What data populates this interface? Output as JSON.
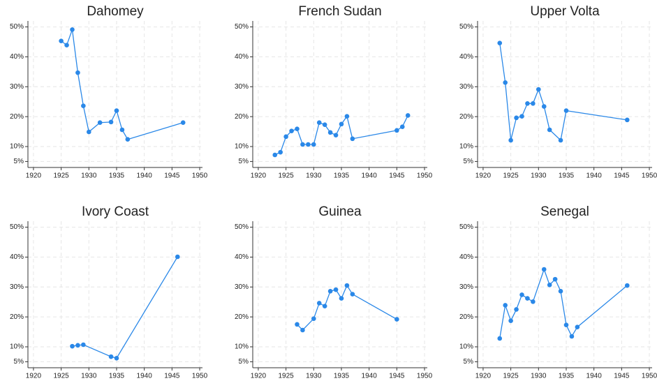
{
  "chart_data": [
    {
      "type": "line",
      "title": "Dahomey",
      "color": "#2a88e8",
      "grid": true,
      "x": [
        1925,
        1926,
        1927,
        1928,
        1929,
        1930,
        1932,
        1934,
        1935,
        1936,
        1937,
        1947
      ],
      "values": [
        45.3,
        43.9,
        49.1,
        34.7,
        23.6,
        14.9,
        18,
        18.2,
        22,
        15.6,
        12.4,
        18
      ],
      "xlim": [
        1919,
        1950.5
      ],
      "ylim": [
        3,
        52
      ],
      "xticks": [
        1920,
        1925,
        1930,
        1935,
        1940,
        1945,
        1950
      ],
      "yticks": [
        {
          "value": 5,
          "label": "5%"
        },
        {
          "value": 10,
          "label": "10%"
        },
        {
          "value": 20,
          "label": "20%"
        },
        {
          "value": 30,
          "label": "30%"
        },
        {
          "value": 40,
          "label": "40%"
        },
        {
          "value": 50,
          "label": "50%"
        }
      ]
    },
    {
      "type": "line",
      "title": "French Sudan",
      "color": "#2a88e8",
      "grid": true,
      "x": [
        1923,
        1924,
        1925,
        1926,
        1927,
        1928,
        1929,
        1930,
        1931,
        1932,
        1933,
        1934,
        1935,
        1936,
        1937,
        1945,
        1946,
        1947
      ],
      "values": [
        7.2,
        8.1,
        13.3,
        15.2,
        15.9,
        10.7,
        10.7,
        10.7,
        18,
        17.3,
        14.7,
        13.8,
        17.5,
        20.1,
        12.6,
        15.4,
        16.6,
        20.4
      ],
      "xlim": [
        1919,
        1950.5
      ],
      "ylim": [
        3,
        52
      ],
      "xticks": [
        1920,
        1925,
        1930,
        1935,
        1940,
        1945,
        1950
      ],
      "yticks": [
        {
          "value": 5,
          "label": "5%"
        },
        {
          "value": 10,
          "label": "10%"
        },
        {
          "value": 20,
          "label": "20%"
        },
        {
          "value": 30,
          "label": "30%"
        },
        {
          "value": 40,
          "label": "40%"
        },
        {
          "value": 50,
          "label": "50%"
        }
      ]
    },
    {
      "type": "line",
      "title": "Upper Volta",
      "color": "#2a88e8",
      "grid": true,
      "x": [
        1923,
        1924,
        1925,
        1926,
        1927,
        1928,
        1929,
        1930,
        1931,
        1932,
        1934,
        1935,
        1946
      ],
      "values": [
        44.6,
        31.4,
        12.1,
        19.6,
        20.1,
        24.4,
        24.4,
        29.1,
        23.4,
        15.6,
        12.1,
        22,
        18.9
      ],
      "xlim": [
        1919,
        1950.5
      ],
      "ylim": [
        3,
        52
      ],
      "xticks": [
        1920,
        1925,
        1930,
        1935,
        1940,
        1945,
        1950
      ],
      "yticks": [
        {
          "value": 5,
          "label": "5%"
        },
        {
          "value": 10,
          "label": "10%"
        },
        {
          "value": 20,
          "label": "20%"
        },
        {
          "value": 30,
          "label": "30%"
        },
        {
          "value": 40,
          "label": "40%"
        },
        {
          "value": 50,
          "label": "50%"
        }
      ]
    },
    {
      "type": "line",
      "title": "Ivory Coast",
      "color": "#2a88e8",
      "grid": true,
      "x": [
        1927,
        1928,
        1929,
        1934,
        1935,
        1946
      ],
      "values": [
        10.2,
        10.5,
        10.7,
        6.7,
        6.2,
        40.1
      ],
      "xlim": [
        1919,
        1950.5
      ],
      "ylim": [
        3,
        52
      ],
      "xticks": [
        1920,
        1925,
        1930,
        1935,
        1940,
        1945,
        1950
      ],
      "yticks": [
        {
          "value": 5,
          "label": "5%"
        },
        {
          "value": 10,
          "label": "10%"
        },
        {
          "value": 20,
          "label": "20%"
        },
        {
          "value": 30,
          "label": "30%"
        },
        {
          "value": 40,
          "label": "40%"
        },
        {
          "value": 50,
          "label": "50%"
        }
      ]
    },
    {
      "type": "line",
      "title": "Guinea",
      "color": "#2a88e8",
      "grid": true,
      "x": [
        1927,
        1928,
        1930,
        1931,
        1932,
        1933,
        1934,
        1935,
        1936,
        1937,
        1945
      ],
      "values": [
        17.5,
        15.6,
        19.4,
        24.6,
        23.6,
        28.6,
        29.1,
        26.2,
        30.5,
        27.6,
        19.2
      ],
      "xlim": [
        1919,
        1950.5
      ],
      "ylim": [
        3,
        52
      ],
      "xticks": [
        1920,
        1925,
        1930,
        1935,
        1940,
        1945,
        1950
      ],
      "yticks": [
        {
          "value": 5,
          "label": "5%"
        },
        {
          "value": 10,
          "label": "10%"
        },
        {
          "value": 20,
          "label": "20%"
        },
        {
          "value": 30,
          "label": "30%"
        },
        {
          "value": 40,
          "label": "40%"
        },
        {
          "value": 50,
          "label": "50%"
        }
      ]
    },
    {
      "type": "line",
      "title": "Senegal",
      "color": "#2a88e8",
      "grid": true,
      "x": [
        1923,
        1924,
        1925,
        1926,
        1927,
        1928,
        1929,
        1931,
        1932,
        1933,
        1934,
        1935,
        1936,
        1937,
        1946
      ],
      "values": [
        12.8,
        23.9,
        18.7,
        22.5,
        27.4,
        26.2,
        25.1,
        35.9,
        30.7,
        32.6,
        28.6,
        17.3,
        13.5,
        16.6,
        30.5
      ],
      "xlim": [
        1919,
        1950.5
      ],
      "ylim": [
        3,
        52
      ],
      "xticks": [
        1920,
        1925,
        1930,
        1935,
        1940,
        1945,
        1950
      ],
      "yticks": [
        {
          "value": 5,
          "label": "5%"
        },
        {
          "value": 10,
          "label": "10%"
        },
        {
          "value": 20,
          "label": "20%"
        },
        {
          "value": 30,
          "label": "30%"
        },
        {
          "value": 40,
          "label": "40%"
        },
        {
          "value": 50,
          "label": "50%"
        }
      ]
    }
  ]
}
